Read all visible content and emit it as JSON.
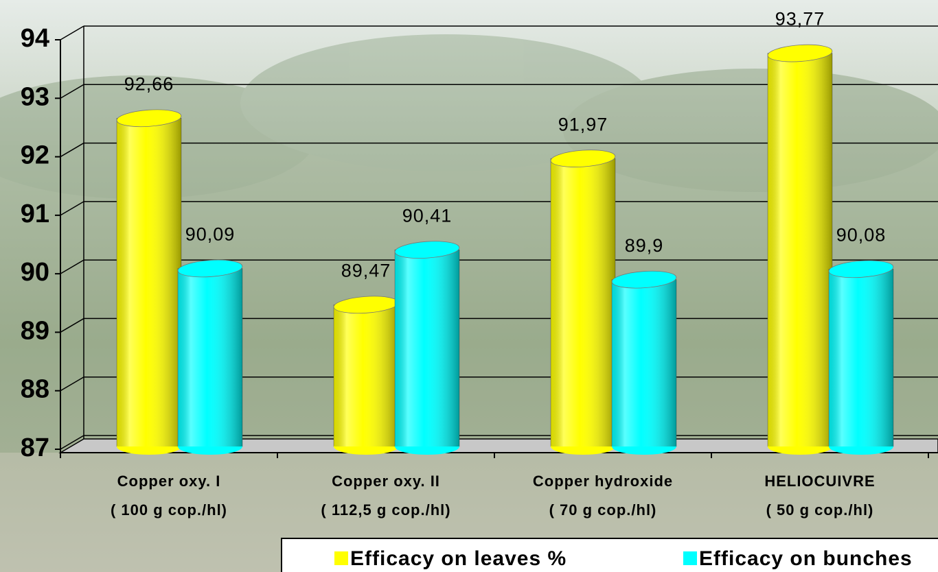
{
  "chart_data": {
    "type": "bar3d",
    "categories": [
      [
        "Copper oxy. I",
        "(  100 g cop./hl)"
      ],
      [
        "Copper oxy. II",
        "(  112,5 g cop./hl)"
      ],
      [
        "Copper hydroxide",
        "(  70 g cop./hl)"
      ],
      [
        "HELIOCUIVRE",
        "(  50 g cop./hl)"
      ]
    ],
    "series": [
      {
        "name": "Efficacy on leaves %",
        "color": "#ffff00",
        "values": [
          92.66,
          89.47,
          91.97,
          93.77
        ],
        "value_labels": [
          "92,66",
          "89,47",
          "91,97",
          "93,77"
        ]
      },
      {
        "name": "Efficacy on bunches",
        "color": "#00ffff",
        "values": [
          90.09,
          90.41,
          89.9,
          90.08
        ],
        "value_labels": [
          "90,09",
          "90,41",
          "89,9",
          "90,08"
        ]
      }
    ],
    "ylim": [
      87,
      94
    ],
    "yticks": [
      87,
      88,
      89,
      90,
      91,
      92,
      93,
      94
    ],
    "grid": true,
    "legend": "bottom"
  }
}
